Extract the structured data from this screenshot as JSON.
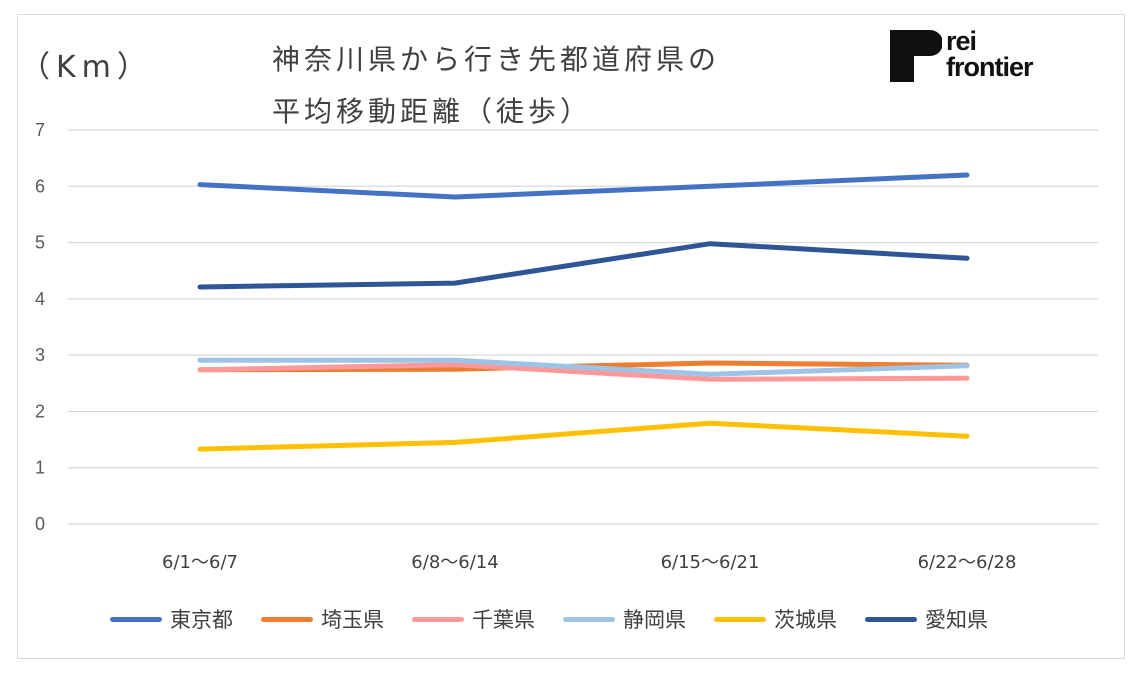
{
  "chart_data": {
    "type": "line",
    "title_lines": [
      "神奈川県から行き先都道府県の",
      "平均移動距離（徒歩）"
    ],
    "unit_label": "（Km）",
    "ylim": [
      0,
      7
    ],
    "yticks": [
      "0",
      "1",
      "2",
      "3",
      "4",
      "5",
      "6",
      "7"
    ],
    "categories": [
      "6/1〜6/7",
      "6/8〜6/14",
      "6/15〜6/21",
      "6/22〜6/28"
    ],
    "grid": true,
    "legend_position": "bottom",
    "series": [
      {
        "name": "東京都",
        "color": "#4472c4",
        "values": [
          6.03,
          5.81,
          6.0,
          6.2
        ]
      },
      {
        "name": "埼玉県",
        "color": "#ed7d31",
        "values": [
          2.74,
          2.75,
          2.86,
          2.82
        ]
      },
      {
        "name": "千葉県",
        "color": "#ff9999",
        "values": [
          2.74,
          2.83,
          2.57,
          2.59
        ]
      },
      {
        "name": "静岡県",
        "color": "#9dc3e6",
        "values": [
          2.91,
          2.91,
          2.66,
          2.81
        ]
      },
      {
        "name": "茨城県",
        "color": "#ffc000",
        "values": [
          1.33,
          1.45,
          1.79,
          1.56
        ]
      },
      {
        "name": "愛知県",
        "color": "#2f5597",
        "values": [
          4.21,
          4.28,
          4.98,
          4.72
        ]
      }
    ]
  },
  "logo": {
    "line1": "rei",
    "line2": "frontier"
  }
}
